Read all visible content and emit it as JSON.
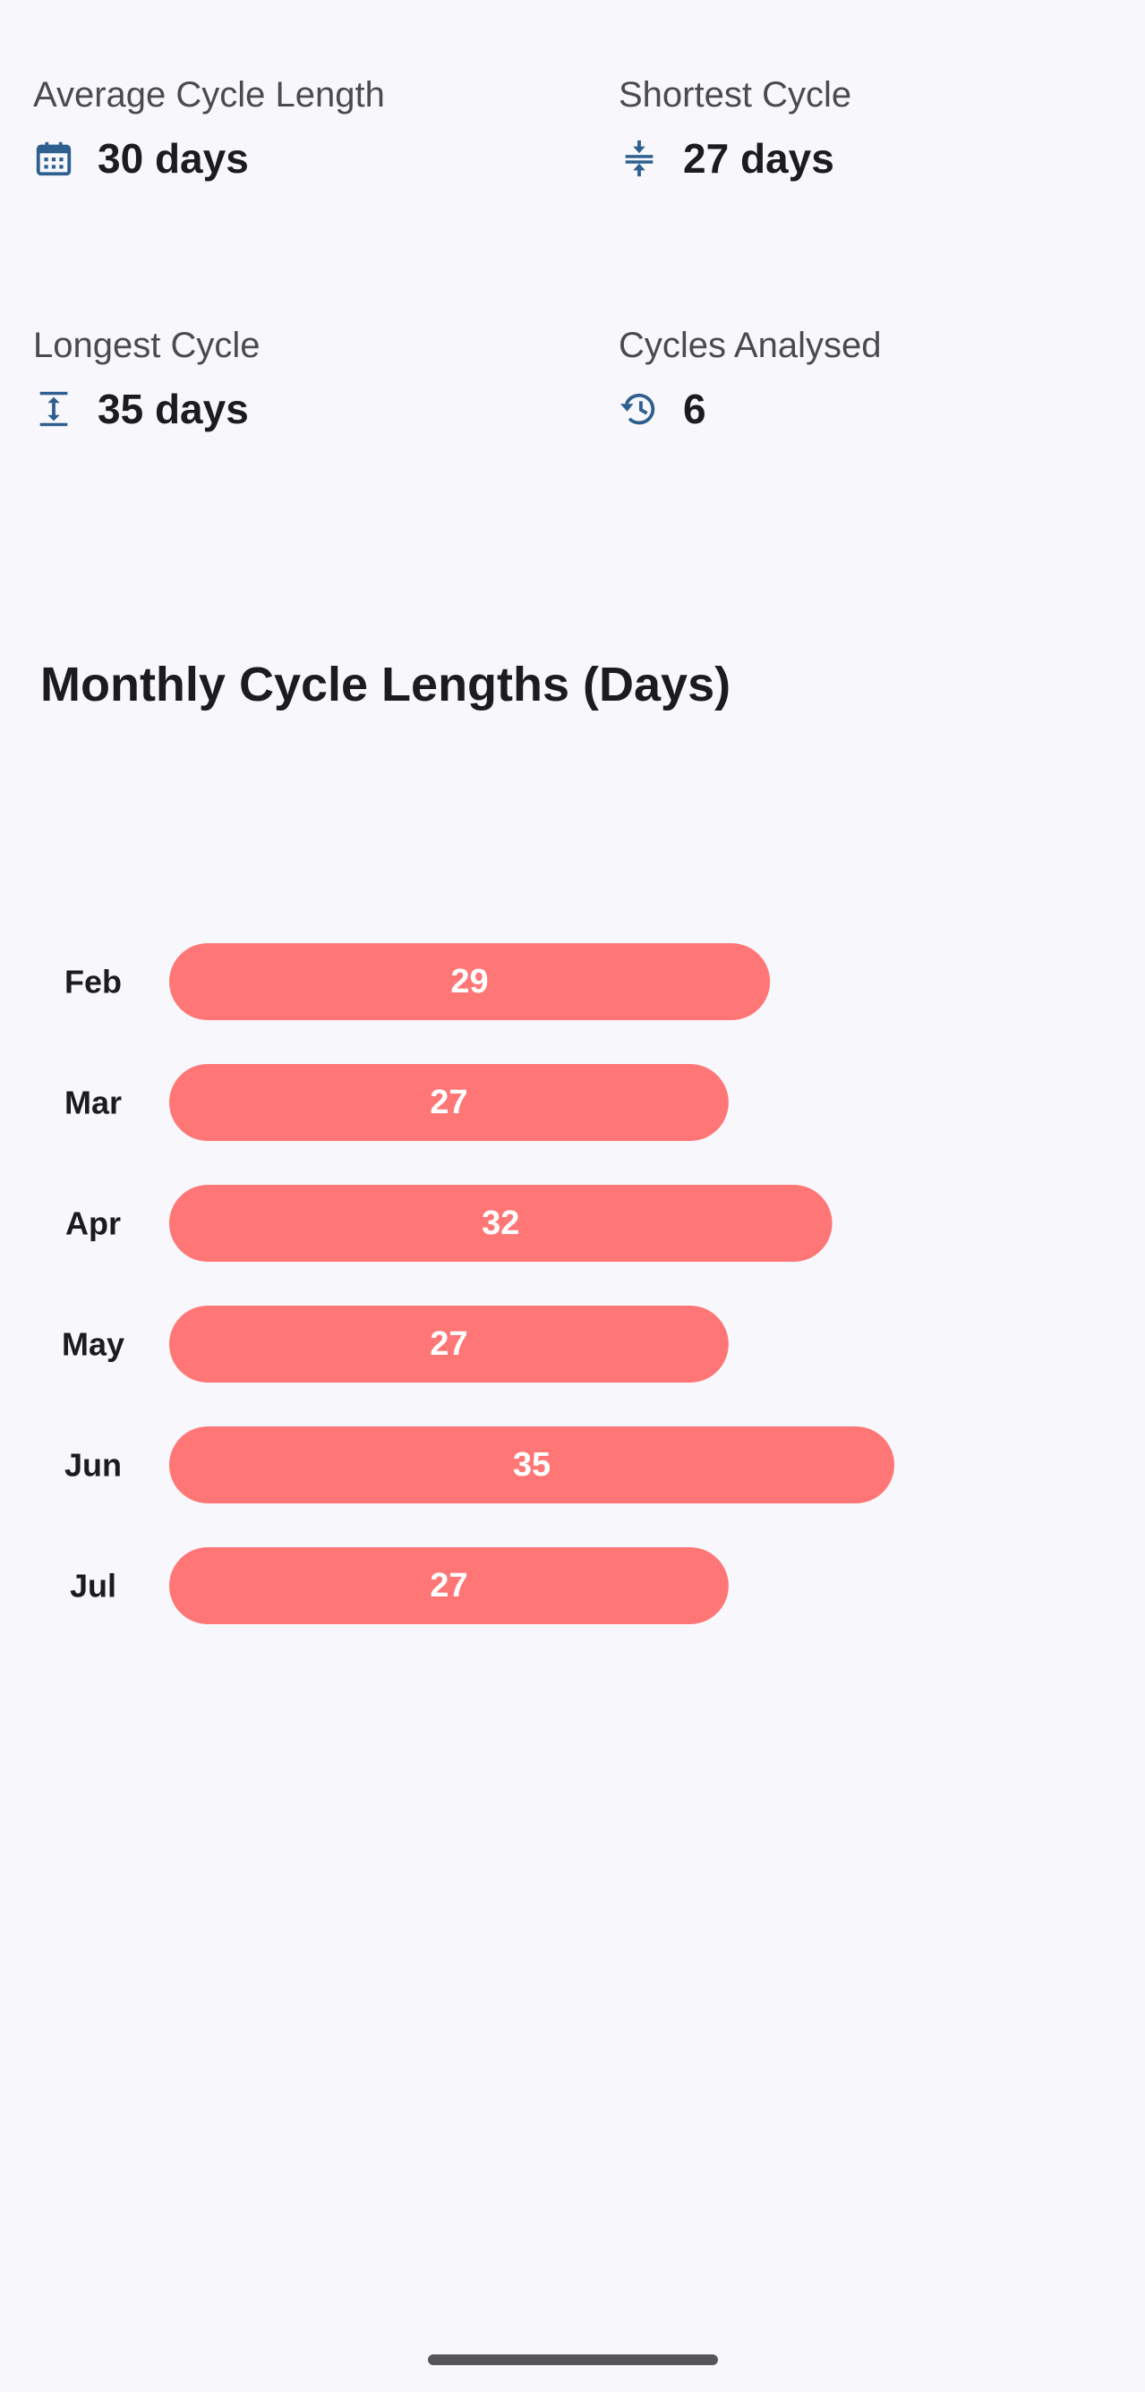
{
  "stats": {
    "average": {
      "label": "Average Cycle Length",
      "value": "30 days",
      "icon": "calendar-icon"
    },
    "shortest": {
      "label": "Shortest Cycle",
      "value": "27 days",
      "icon": "compress-vertical-icon"
    },
    "longest": {
      "label": "Longest Cycle",
      "value": "35 days",
      "icon": "expand-vertical-icon"
    },
    "cycles": {
      "label": "Cycles Analysed",
      "value": "6",
      "icon": "history-icon"
    }
  },
  "chart_title": "Monthly Cycle Lengths (Days)",
  "colors": {
    "bar": "#ff7676",
    "icon": "#2f5f8f",
    "bar_label": "#ffffff"
  },
  "chart_data": {
    "type": "bar",
    "orientation": "horizontal",
    "title": "Monthly Cycle Lengths (Days)",
    "categories": [
      "Feb",
      "Mar",
      "Apr",
      "May",
      "Jun",
      "Jul"
    ],
    "values": [
      29,
      27,
      32,
      27,
      35,
      27
    ],
    "data_labels": true,
    "grid": false,
    "legend": "none"
  }
}
